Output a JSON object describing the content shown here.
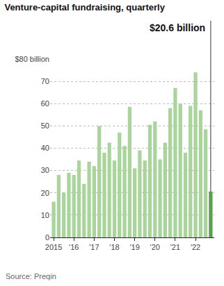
{
  "chart_data": {
    "type": "bar",
    "title": "Venture-capital fundraising, quarterly",
    "source": "Source: Preqin",
    "categories": [
      "2015",
      null,
      null,
      null,
      "'16",
      null,
      null,
      null,
      "'17",
      null,
      null,
      null,
      "'18",
      null,
      null,
      null,
      "'19",
      null,
      null,
      null,
      "'20",
      null,
      null,
      null,
      "'21",
      null,
      null,
      null,
      "'22",
      null,
      null,
      null
    ],
    "values": [
      16,
      28,
      20,
      29,
      28,
      34.5,
      24,
      34,
      32,
      50,
      38,
      42.5,
      34.5,
      47,
      41,
      58.5,
      31,
      39,
      34.5,
      50.5,
      52,
      35,
      42.5,
      58,
      67,
      60,
      38,
      59,
      74,
      57,
      48.5,
      20.6
    ],
    "colors": [
      "#a9d59c",
      "#a9d59c",
      "#a9d59c",
      "#a9d59c",
      "#a9d59c",
      "#a9d59c",
      "#a9d59c",
      "#a9d59c",
      "#a9d59c",
      "#a9d59c",
      "#a9d59c",
      "#a9d59c",
      "#a9d59c",
      "#a9d59c",
      "#a9d59c",
      "#a9d59c",
      "#a9d59c",
      "#a9d59c",
      "#a9d59c",
      "#a9d59c",
      "#a9d59c",
      "#a9d59c",
      "#a9d59c",
      "#a9d59c",
      "#a9d59c",
      "#a9d59c",
      "#a9d59c",
      "#a9d59c",
      "#a9d59c",
      "#a9d59c",
      "#a9d59c",
      "#5c9e4e"
    ],
    "annotations": [
      {
        "text": "$20.6 billion"
      }
    ],
    "ylim": [
      0,
      80
    ],
    "yticks": [
      0,
      10,
      20,
      30,
      40,
      50,
      60,
      70,
      {
        "value": 80,
        "label": "$80 billion"
      }
    ],
    "grid": true
  }
}
